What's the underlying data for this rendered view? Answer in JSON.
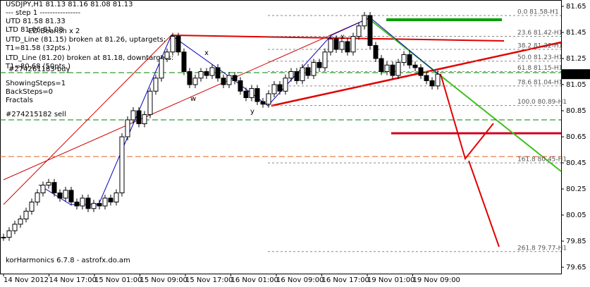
{
  "header": {
    "symbol_line": "USDJPY,H1  81.13 81.16 81.08 81.13",
    "step_line": "---  step 1  ----------------",
    "utd": "UTD 81.58  81.33",
    "ltd": "LTD 81.06  81.08",
    "pattern": "ED.Bearish x 2",
    "utd_break": "UTD_Line (81.15) broken at 81.26, uptargets:",
    "utd_target": "T1=81.58 (32pts.)",
    "ltd_break": "LTD_Line (81.20) broken at 81.18, downtargets:",
    "ltd_target": "T1=80.68 (50pts.)",
    "order_buy": "#274261183 buy",
    "showing": "ShowingSteps=1",
    "backsteps": "BackSteps=0",
    "fractals": "Fractals",
    "order_sell": "#274215182 sell",
    "footer": "korHarmonics 6.7.8 - astrofx.do.am"
  },
  "price_axis": {
    "ticks": [
      81.65,
      81.45,
      81.25,
      81.05,
      80.85,
      80.65,
      80.45,
      80.25,
      80.05,
      79.85,
      79.65
    ],
    "current": 81.13
  },
  "time_axis": [
    "14 Nov 2012",
    "14 Nov 17:00",
    "15 Nov 01:00",
    "15 Nov 09:00",
    "15 Nov 17:00",
    "16 Nov 01:00",
    "16 Nov 09:00",
    "16 Nov 17:00",
    "19 Nov 01:00",
    "19 Nov 09:00"
  ],
  "fib_levels": [
    {
      "label": "0.0 81.58-H1",
      "price": 81.58
    },
    {
      "label": "23.6 81.42-H1",
      "price": 81.42
    },
    {
      "label": "38.2 81.32-H1",
      "price": 81.32
    },
    {
      "label": "50.0 81.23-H1",
      "price": 81.23
    },
    {
      "label": "61.8 81.15-H1",
      "price": 81.15
    },
    {
      "label": "78.6 81.04-H1",
      "price": 81.04
    },
    {
      "label": "100.0 80.89-H1",
      "price": 80.89
    },
    {
      "label": "161.8 80.45-H1",
      "price": 80.45
    },
    {
      "label": "261.8 79.77-H1",
      "price": 79.77
    }
  ],
  "wave_labels": [
    "x",
    "w",
    "y",
    "x"
  ],
  "close": [
    79.88,
    79.93,
    79.98,
    80.02,
    80.08,
    80.15,
    80.22,
    80.28,
    80.3,
    80.22,
    80.18,
    80.24,
    80.15,
    80.12,
    80.18,
    80.1,
    80.14,
    80.12,
    80.18,
    80.15,
    80.22,
    80.65,
    80.78,
    80.85,
    80.75,
    80.82,
    81.0,
    81.1,
    81.25,
    81.3,
    81.42,
    81.3,
    81.15,
    81.05,
    81.1,
    81.15,
    81.12,
    81.18,
    81.1,
    81.05,
    81.12,
    81.08,
    81.0,
    80.95,
    81.02,
    80.92,
    80.9,
    80.98,
    81.05,
    81.0,
    81.1,
    81.15,
    81.08,
    81.18,
    81.12,
    81.22,
    81.18,
    81.3,
    81.4,
    81.32,
    81.38,
    81.3,
    81.42,
    81.5,
    81.58,
    81.35,
    81.25,
    81.15,
    81.2,
    81.12,
    81.22,
    81.28,
    81.2,
    81.18,
    81.12,
    81.08,
    81.04,
    81.13
  ]
}
